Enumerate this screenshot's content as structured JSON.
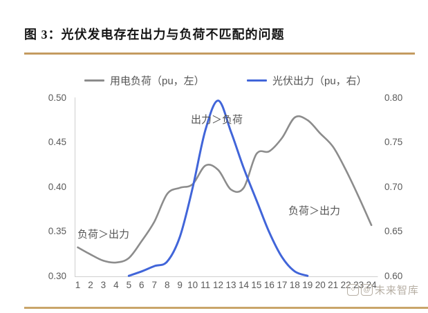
{
  "figure": {
    "title": "图 3：光伏发电存在出力与负荷不匹配的问题"
  },
  "legend": {
    "items": [
      {
        "label": "用电负荷（pu，左）",
        "color": "#8C8C8C"
      },
      {
        "label": "光伏出力（pu，右）",
        "color": "#4165D9"
      }
    ]
  },
  "annotations": {
    "top": "出力＞负荷",
    "left": "负荷＞出力",
    "right": "负荷＞出力"
  },
  "watermark": {
    "logo_icon": "vzkoo-paw-logo",
    "at_icon": "@",
    "text": "未来智库"
  },
  "colors": {
    "accent_gold": "#C49B60",
    "load_gray": "#8C8C8C",
    "pv_blue": "#4165D9",
    "axis_line": "#CFCFCF",
    "text_gray": "#595959",
    "watermark_gray": "#B6AEA3"
  },
  "chart_data": {
    "type": "line",
    "title": "图 3：光伏发电存在出力与负荷不匹配的问题",
    "x": [
      1,
      2,
      3,
      4,
      5,
      6,
      7,
      8,
      9,
      10,
      11,
      12,
      13,
      14,
      15,
      16,
      17,
      18,
      19,
      20,
      21,
      22,
      23,
      24
    ],
    "series": [
      {
        "name": "用电负荷（pu，左）",
        "axis": "left",
        "color": "#8C8C8C",
        "values": [
          0.333,
          0.325,
          0.318,
          0.316,
          0.321,
          0.34,
          0.362,
          0.393,
          0.4,
          0.404,
          0.425,
          0.42,
          0.398,
          0.4,
          0.438,
          0.441,
          0.456,
          0.479,
          0.476,
          0.461,
          0.446,
          0.42,
          0.39,
          0.358
        ]
      },
      {
        "name": "光伏出力（pu，右）",
        "axis": "right",
        "color": "#4165D9",
        "values": [
          null,
          null,
          null,
          null,
          0.601,
          0.606,
          0.612,
          0.617,
          0.645,
          0.7,
          0.765,
          0.798,
          0.763,
          0.722,
          0.686,
          0.65,
          0.622,
          0.606,
          0.601,
          null,
          null,
          null,
          null,
          null
        ]
      }
    ],
    "left_axis": {
      "min": 0.3,
      "max": 0.5,
      "tick_step": 0.05,
      "ticks": [
        0.5,
        0.45,
        0.4,
        0.35,
        0.3
      ]
    },
    "right_axis": {
      "min": 0.6,
      "max": 0.8,
      "tick_step": 0.05,
      "ticks": [
        0.8,
        0.75,
        0.7,
        0.65,
        0.6
      ]
    },
    "grid": false,
    "legend_position": "top-center"
  }
}
